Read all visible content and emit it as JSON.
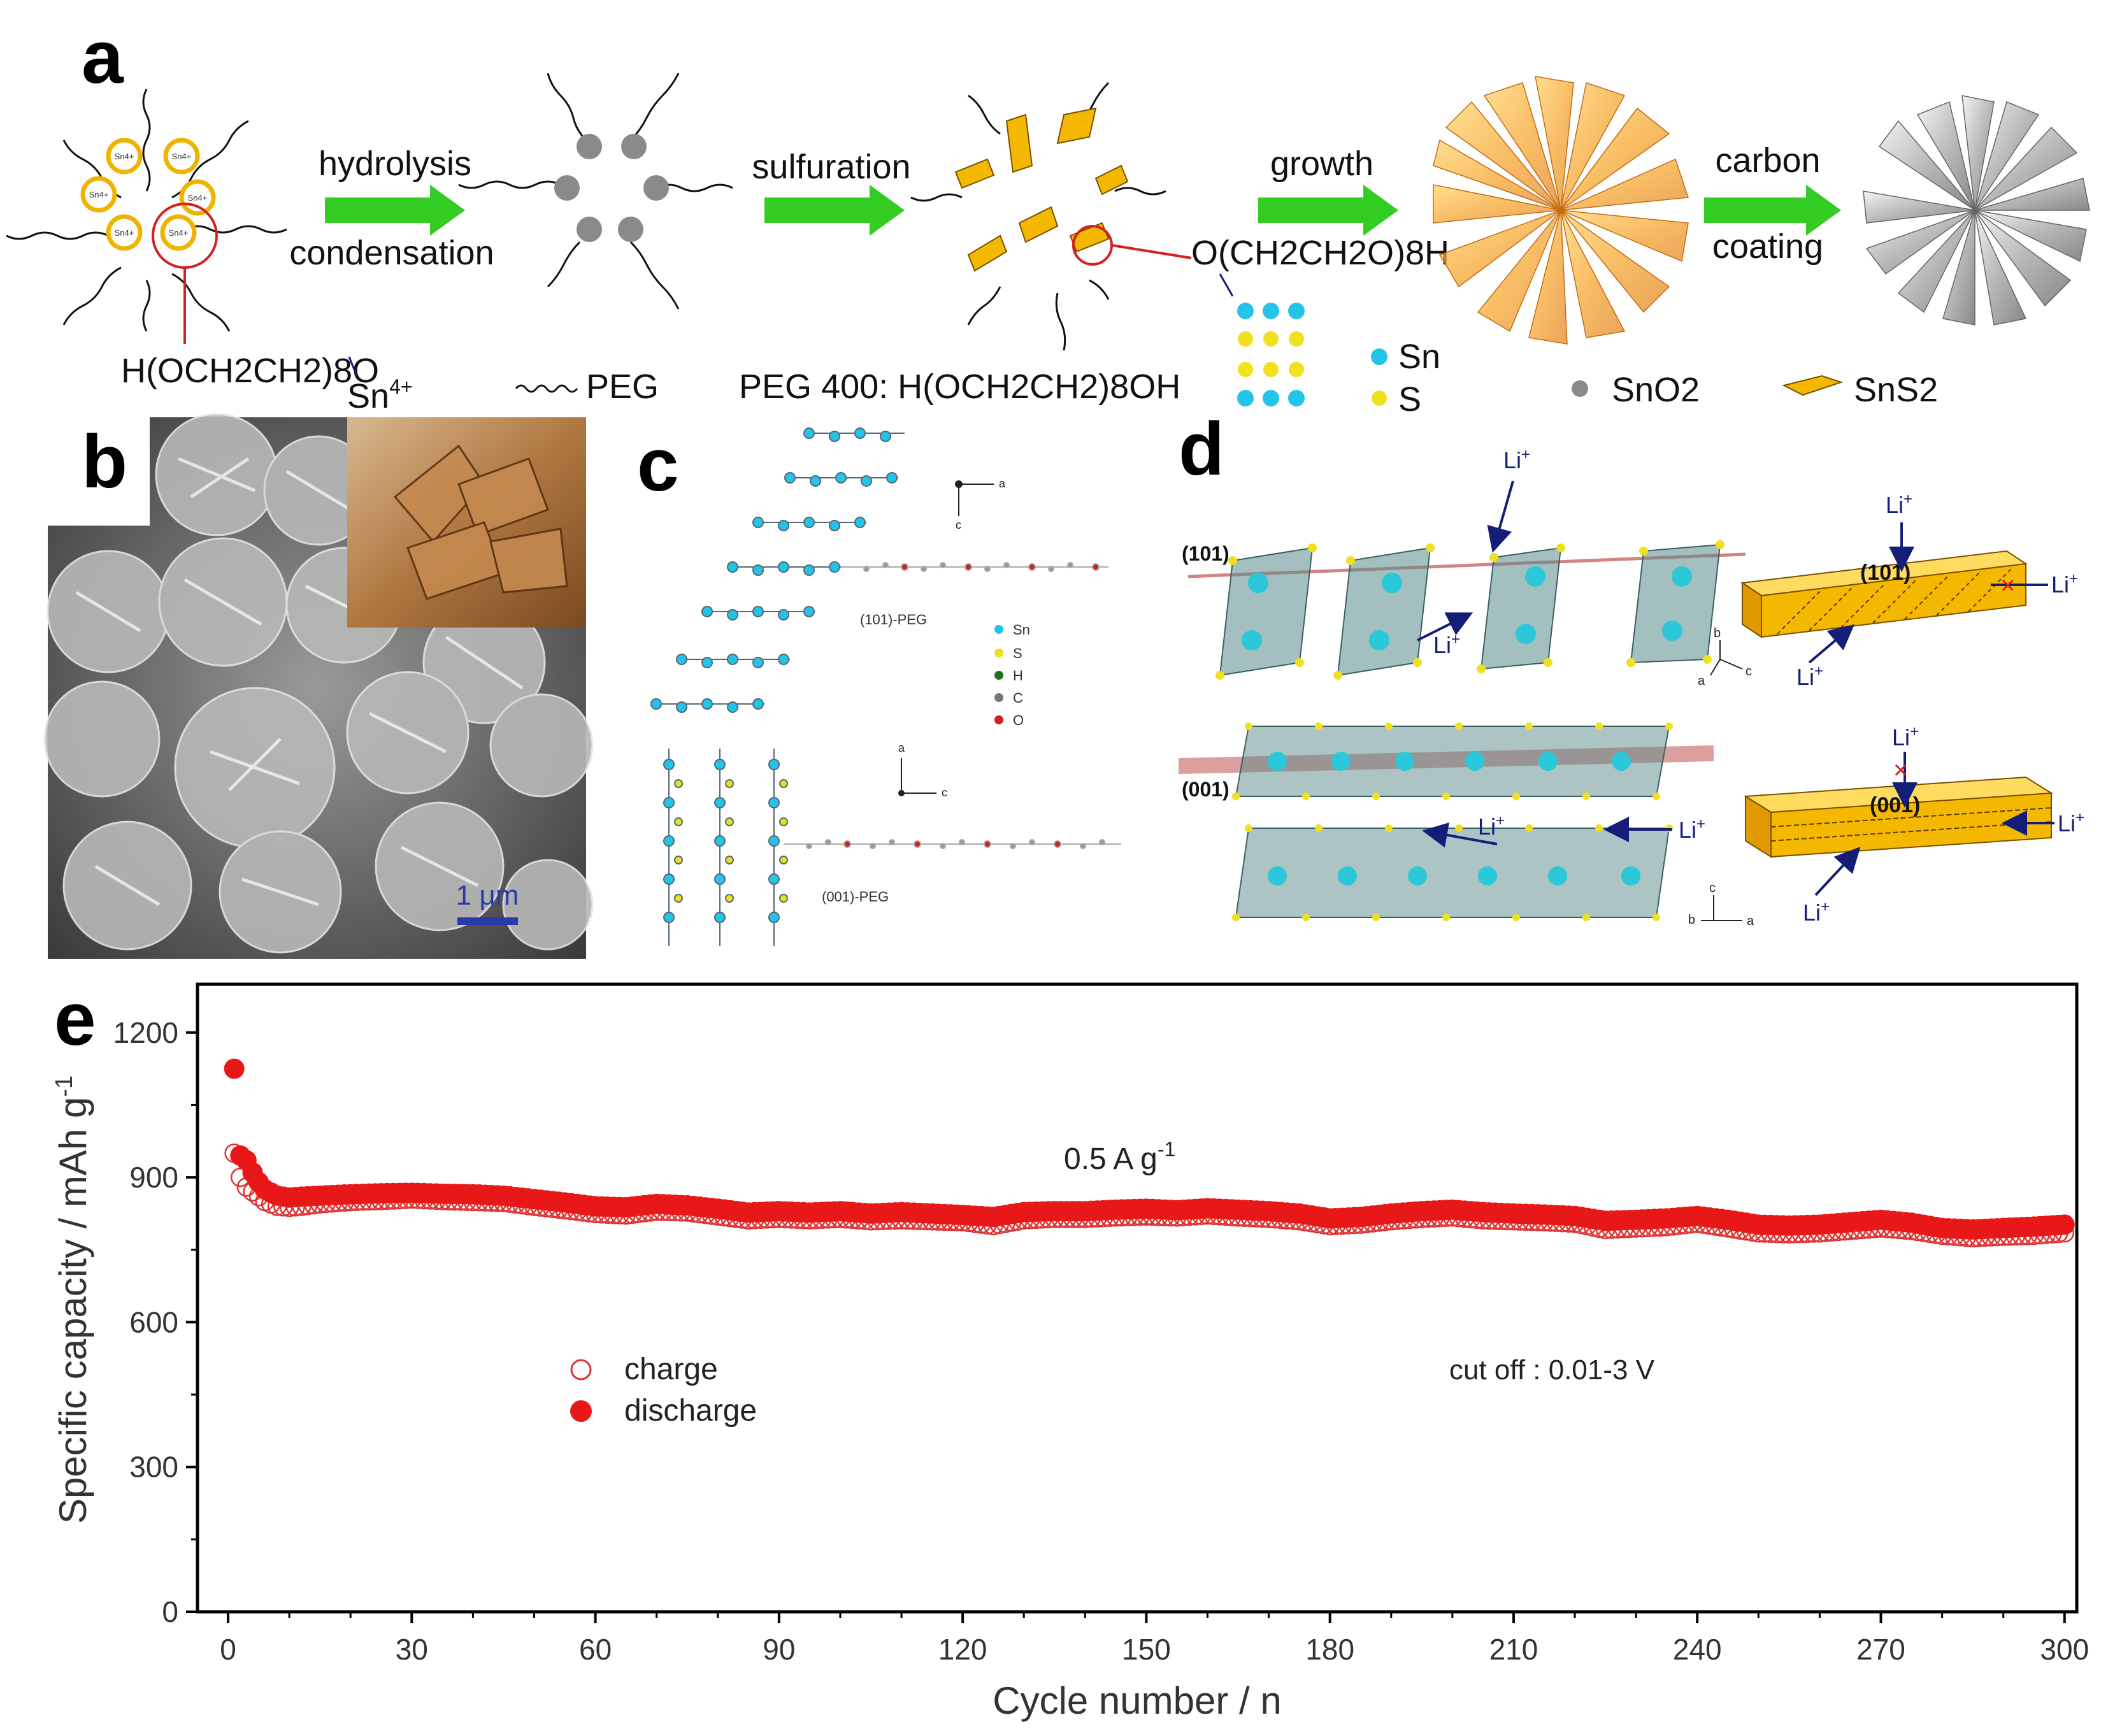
{
  "panel_a": {
    "letter": "a",
    "steps": [
      {
        "top": "hydrolysis",
        "bottom": "condensation"
      },
      {
        "top": "sulfuration",
        "bottom": ""
      },
      {
        "top": "growth",
        "bottom": ""
      },
      {
        "top": "carbon",
        "bottom": "coating"
      }
    ],
    "ion_label": "Sn4+",
    "ligand_formula": "H(OCH2CH2)8O",
    "ligand_tail": "Sn",
    "ligand_tail_sup": "4+",
    "ligand_formula_right": "O(CH2CH2O)8H",
    "legend": {
      "peg": "PEG",
      "peg400": "PEG 400: H(OCH2CH2)8OH",
      "sn": "Sn",
      "s": "S",
      "sno2": "SnO2",
      "sns2": "SnS2"
    },
    "colors": {
      "arrow": "#33cc22",
      "ring": "#f0b400",
      "orange": "#f5a020",
      "sn_atom": "#22c4e8",
      "s_atom": "#f0e020",
      "gray": "#8a8a8a",
      "red_circle": "#d42020"
    }
  },
  "panel_b": {
    "letter": "b",
    "scale_bar": "1 μm"
  },
  "panel_c": {
    "letter": "c",
    "label_101": "(101)-PEG",
    "label_001": "(001)-PEG",
    "axes_top": {
      "a": "a",
      "c": "c"
    },
    "axes_bottom": {
      "a": "a",
      "c": "c"
    },
    "legend": [
      "Sn",
      "S",
      "H",
      "C",
      "O"
    ],
    "legend_colors": [
      "#22c4e8",
      "#e8e020",
      "#207020",
      "#777777",
      "#d02020"
    ]
  },
  "panel_d": {
    "letter": "d",
    "plane_101": "(101)",
    "plane_001": "(001)",
    "li": "Li",
    "li_sup": "+",
    "axes_top": {
      "a": "a",
      "b": "b",
      "c": "c"
    },
    "axes_bottom": {
      "a": "a",
      "b": "b",
      "c": "c"
    }
  },
  "panel_e": {
    "letter": "e",
    "annotation_rate": "0.5 A g",
    "annotation_rate_sup": "-1",
    "annotation_cutoff": "cut off : 0.01-3 V",
    "legend_charge": "charge",
    "legend_discharge": "discharge"
  },
  "chart_data": {
    "type": "scatter",
    "xlabel": "Cycle number / n",
    "ylabel": "Specific capacity / mAh g",
    "ylabel_sup": "-1",
    "xlim": [
      -5,
      302
    ],
    "ylim": [
      0,
      1300
    ],
    "xticks": [
      0,
      30,
      60,
      90,
      120,
      150,
      180,
      210,
      240,
      270,
      300
    ],
    "yticks": [
      0,
      300,
      600,
      900,
      1200
    ],
    "x": [
      1,
      2,
      3,
      4,
      5,
      6,
      8,
      10,
      12,
      15,
      20,
      25,
      30,
      35,
      40,
      45,
      50,
      55,
      60,
      65,
      70,
      75,
      80,
      85,
      90,
      95,
      100,
      105,
      110,
      115,
      120,
      125,
      130,
      135,
      140,
      145,
      150,
      155,
      160,
      165,
      170,
      175,
      180,
      185,
      190,
      195,
      200,
      205,
      210,
      215,
      220,
      225,
      230,
      235,
      240,
      245,
      250,
      255,
      260,
      265,
      270,
      275,
      280,
      285,
      290,
      295,
      300
    ],
    "series": [
      {
        "name": "charge",
        "marker": "open-circle",
        "color": "#e03030",
        "values": [
          950,
          900,
          880,
          870,
          860,
          850,
          840,
          838,
          840,
          845,
          850,
          852,
          855,
          852,
          850,
          848,
          840,
          833,
          825,
          822,
          830,
          828,
          820,
          812,
          815,
          812,
          815,
          810,
          812,
          810,
          808,
          800,
          812,
          815,
          815,
          818,
          820,
          818,
          822,
          818,
          815,
          810,
          800,
          803,
          810,
          815,
          818,
          812,
          810,
          808,
          805,
          792,
          795,
          798,
          805,
          795,
          785,
          783,
          785,
          790,
          795,
          790,
          780,
          775,
          778,
          780,
          785
        ]
      },
      {
        "name": "discharge",
        "marker": "filled-circle",
        "color": "#e81818",
        "values": [
          1125,
          945,
          935,
          910,
          890,
          875,
          862,
          858,
          860,
          862,
          865,
          867,
          868,
          866,
          865,
          862,
          855,
          848,
          840,
          838,
          845,
          842,
          835,
          827,
          830,
          827,
          830,
          825,
          828,
          825,
          822,
          818,
          828,
          830,
          830,
          833,
          835,
          832,
          836,
          833,
          830,
          825,
          815,
          818,
          825,
          830,
          833,
          828,
          825,
          823,
          820,
          810,
          812,
          815,
          820,
          812,
          802,
          800,
          802,
          807,
          812,
          806,
          795,
          792,
          795,
          798,
          802
        ]
      }
    ]
  }
}
